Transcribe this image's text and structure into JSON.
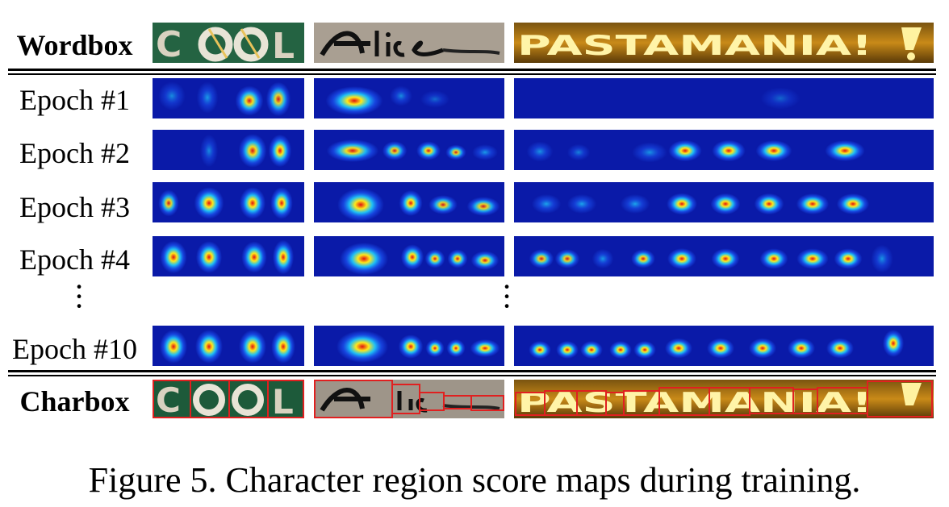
{
  "figure": {
    "caption": "Figure 5. Character region score maps during training.",
    "columns": [
      {
        "word": "COOL",
        "char_count": 4
      },
      {
        "word": "Alice",
        "char_count": 5
      },
      {
        "word": "PASTAMANIA!",
        "char_count": 11
      }
    ],
    "rows": {
      "wordbox": "Wordbox",
      "epoch1": "Epoch #1",
      "epoch2": "Epoch #2",
      "epoch3": "Epoch #3",
      "epoch4": "Epoch #4",
      "epoch10": "Epoch #10",
      "charbox": "Charbox"
    },
    "heatmap_colors": {
      "background": "#0a1aa8",
      "low": "#1e5cff",
      "mid": "#1fd0ff",
      "high": "#ffe81a",
      "peak": "#e01010"
    }
  }
}
